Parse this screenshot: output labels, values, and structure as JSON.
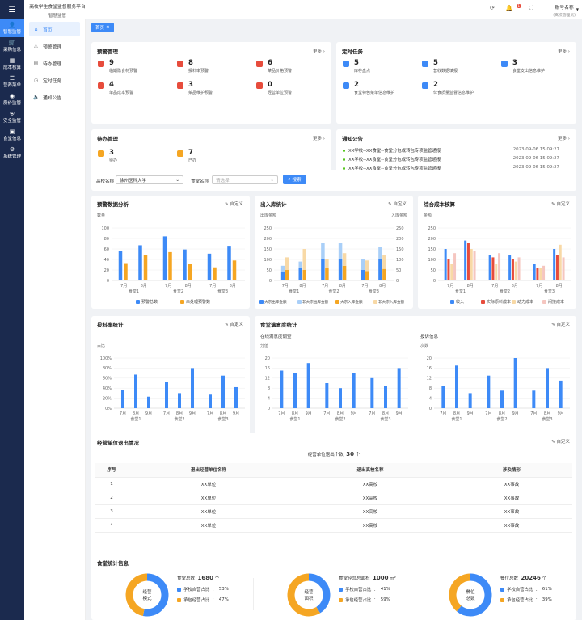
{
  "app": {
    "title": "高校学生食堂监督服务平台",
    "subtitle": "智慧监管"
  },
  "user": {
    "name": "账号名称",
    "role": "(高校管理员)"
  },
  "topbar": {
    "badge": "1"
  },
  "rail": [
    {
      "icon": "person",
      "label": "智慧监管",
      "active": true
    },
    {
      "icon": "cart",
      "label": "采购信息"
    },
    {
      "icon": "calc",
      "label": "成本核算"
    },
    {
      "icon": "menu",
      "label": "营养菜单"
    },
    {
      "icon": "coin",
      "label": "质价监管"
    },
    {
      "icon": "shield",
      "label": "安全监管"
    },
    {
      "icon": "store",
      "label": "食堂信息"
    },
    {
      "icon": "gear",
      "label": "系统管理"
    }
  ],
  "sidebar": [
    {
      "label": "首页",
      "active": true
    },
    {
      "label": "预警管理"
    },
    {
      "label": "待办管理"
    },
    {
      "label": "定时任务"
    },
    {
      "label": "通知公告"
    }
  ],
  "breadcrumb": "首页",
  "common": {
    "more": "更多",
    "custom": "自定义"
  },
  "warning": {
    "title": "预警管理",
    "items": [
      {
        "num": "9",
        "label": "临期隐食材预警",
        "color": "#e74c3c"
      },
      {
        "num": "8",
        "label": "投料率预警",
        "color": "#e74c3c"
      },
      {
        "num": "6",
        "label": "菜品价格预警",
        "color": "#e74c3c"
      },
      {
        "num": "4",
        "label": "单品成本预警",
        "color": "#e74c3c"
      },
      {
        "num": "3",
        "label": "菜品维护预警",
        "color": "#e74c3c"
      },
      {
        "num": "0",
        "label": "经营单位预警",
        "color": "#e74c3c"
      }
    ]
  },
  "tasks": {
    "title": "定时任务",
    "items": [
      {
        "num": "5",
        "label": "库存盘点",
        "color": "#3d8af7"
      },
      {
        "num": "5",
        "label": "营收数据填报",
        "color": "#3d8af7"
      },
      {
        "num": "3",
        "label": "食堂支出信息维护",
        "color": "#3d8af7"
      },
      {
        "num": "2",
        "label": "食堂特色菜单信息维护",
        "color": "#3d8af7"
      },
      {
        "num": "2",
        "label": "伙食质量监督信息维护",
        "color": "#3d8af7"
      }
    ]
  },
  "todo": {
    "title": "待办管理",
    "items": [
      {
        "num": "3",
        "label": "待办",
        "color": "#f5a623"
      },
      {
        "num": "7",
        "label": "已办",
        "color": "#f5a623"
      }
    ]
  },
  "notices": {
    "title": "通知公告",
    "items": [
      {
        "text": "XX学校--XX食堂--食堂分包或转包专项监管通报",
        "time": "2023-09-06 15:09:27"
      },
      {
        "text": "XX学校--XX食堂--食堂分包或转包专项监管通报",
        "time": "2023-09-06 15:09:27"
      },
      {
        "text": "XX学校--XX食堂--食堂分包或转包专项监管通报",
        "time": "2023-09-06 15:09:27"
      }
    ]
  },
  "filter": {
    "school_label": "高校名称",
    "school_value": "徐州医科大学",
    "canteen_label": "食堂名称",
    "canteen_placeholder": "请选择",
    "search": "搜索"
  },
  "chart_data": [
    {
      "id": "warn",
      "type": "bar",
      "title": "预警数据分析",
      "ylabel": "数量",
      "ylim": [
        0,
        100
      ],
      "yticks": [
        0,
        20,
        40,
        60,
        80,
        100
      ],
      "groups": [
        "食堂1",
        "食堂2",
        "食堂3"
      ],
      "months": [
        "7月",
        "8月"
      ],
      "series": [
        {
          "name": "预警总数",
          "color": "#3d8af7",
          "values": [
            56,
            67,
            84,
            59,
            51,
            66
          ]
        },
        {
          "name": "未处理预警数",
          "color": "#f5a623",
          "values": [
            33,
            48,
            54,
            31,
            25,
            38
          ]
        }
      ]
    },
    {
      "id": "io",
      "type": "bar",
      "title": "出入库统计",
      "ylabel": "出库金额",
      "ylabel_right": "入库金额",
      "ylim": [
        0,
        250
      ],
      "yticks": [
        0,
        50,
        100,
        150,
        200,
        250
      ],
      "groups": [
        "食堂1",
        "食堂2",
        "食堂3"
      ],
      "months": [
        "7月",
        "8月"
      ],
      "stacked": true,
      "series": [
        {
          "name": "大宗出库金额",
          "color": "#3d8af7",
          "stack": "out",
          "values": [
            40,
            60,
            100,
            100,
            50,
            100
          ]
        },
        {
          "name": "非大宗出库金额",
          "color": "#a9cff8",
          "stack": "out",
          "values": [
            30,
            30,
            80,
            80,
            50,
            60
          ]
        },
        {
          "name": "大宗入库金额",
          "color": "#f5a623",
          "stack": "in",
          "values": [
            50,
            50,
            60,
            70,
            45,
            55
          ]
        },
        {
          "name": "非大宗入库金额",
          "color": "#f8d9a6",
          "stack": "in",
          "values": [
            60,
            100,
            40,
            60,
            50,
            65
          ]
        }
      ]
    },
    {
      "id": "cost",
      "type": "bar",
      "title": "综合成本核算",
      "ylabel": "金额",
      "ylim": [
        0,
        250
      ],
      "yticks": [
        0,
        50,
        100,
        150,
        200,
        250
      ],
      "groups": [
        "食堂1",
        "食堂2",
        "食堂3"
      ],
      "months": [
        "7月",
        "8月"
      ],
      "series": [
        {
          "name": "收入",
          "color": "#3d8af7",
          "values": [
            150,
            190,
            120,
            120,
            80,
            150
          ]
        },
        {
          "name": "实际原料成本",
          "color": "#e74c3c",
          "values": [
            100,
            180,
            110,
            100,
            60,
            120
          ]
        },
        {
          "name": "动力成本",
          "color": "#f8d9a6",
          "values": [
            80,
            150,
            80,
            90,
            60,
            170
          ]
        },
        {
          "name": "间接成本",
          "color": "#f5c6c0",
          "values": [
            130,
            140,
            130,
            110,
            70,
            110
          ]
        }
      ]
    },
    {
      "id": "feed",
      "type": "bar",
      "title": "投料率统计",
      "ylabel": "占比",
      "ylim": [
        0,
        100
      ],
      "ytick_labels": [
        "0%",
        "20%",
        "40%",
        "60%",
        "80%",
        "100%"
      ],
      "groups": [
        "食堂1",
        "食堂2",
        "食堂3"
      ],
      "months": [
        "7月",
        "8月",
        "9月"
      ],
      "series": [
        {
          "name": "投料率",
          "color": "#3d8af7",
          "values": [
            36,
            67,
            23,
            52,
            30,
            80,
            27,
            65,
            42
          ]
        }
      ]
    },
    {
      "id": "satis",
      "type": "bar",
      "title": "食堂满意度统计",
      "subtitle": "在线满意度调查",
      "ylabel": "分值",
      "ylim": [
        0,
        20
      ],
      "yticks": [
        0,
        4,
        8,
        12,
        16,
        20
      ],
      "groups": [
        "食堂1",
        "食堂2",
        "食堂3"
      ],
      "months": [
        "7月",
        "8月",
        "9月"
      ],
      "series": [
        {
          "name": "满意度",
          "color": "#3d8af7",
          "values": [
            15,
            14,
            18,
            10,
            8,
            14,
            12,
            9,
            16
          ]
        }
      ]
    },
    {
      "id": "complaint",
      "type": "bar",
      "subtitle": "投诉信息",
      "ylabel": "次数",
      "ylim": [
        0,
        20
      ],
      "yticks": [
        0,
        4,
        8,
        12,
        16,
        20
      ],
      "groups": [
        "食堂1",
        "食堂2",
        "食堂3"
      ],
      "months": [
        "7月",
        "8月",
        "9月"
      ],
      "series": [
        {
          "name": "投诉",
          "color": "#3d8af7",
          "values": [
            9,
            17,
            6,
            13,
            7,
            20,
            7,
            16,
            11
          ]
        }
      ]
    },
    {
      "id": "mode",
      "type": "pie",
      "center_label": [
        "经营",
        "模式"
      ],
      "total_label": "食堂总数",
      "total_value": "1680",
      "unit": "个",
      "slices": [
        {
          "name": "学校自营占比",
          "value": 53,
          "color": "#3d8af7"
        },
        {
          "name": "承包经营占比",
          "value": 47,
          "color": "#f5a623"
        }
      ]
    },
    {
      "id": "area",
      "type": "pie",
      "center_label": [
        "经营",
        "面积"
      ],
      "total_label": "食堂经营总面积",
      "total_value": "1000",
      "unit": "m²",
      "slices": [
        {
          "name": "学校自营占比",
          "value": 41,
          "color": "#3d8af7"
        },
        {
          "name": "承包经营占比",
          "value": 59,
          "color": "#f5a623"
        }
      ]
    },
    {
      "id": "seats",
      "type": "pie",
      "center_label": [
        "餐位",
        "总数"
      ],
      "total_label": "餐位总数",
      "total_value": "20246",
      "unit": "个",
      "slices": [
        {
          "name": "学校自营占比",
          "value": 61,
          "color": "#3d8af7"
        },
        {
          "name": "承包经营占比",
          "value": 39,
          "color": "#f5a623"
        }
      ]
    }
  ],
  "exit": {
    "title": "经营单位退出情况",
    "summary_label": "经营单位退出个数",
    "summary_value": "30",
    "summary_unit": "个",
    "headers": [
      "序号",
      "退出经营单位名称",
      "退出高校名称",
      "涉及情形"
    ],
    "rows": [
      [
        "1",
        "XX单位",
        "XX高校",
        "XX事故"
      ],
      [
        "2",
        "XX单位",
        "XX高校",
        "XX事故"
      ],
      [
        "3",
        "XX单位",
        "XX高校",
        "XX事故"
      ],
      [
        "4",
        "XX单位",
        "XX高校",
        "XX事故"
      ]
    ]
  },
  "canteen_stats": {
    "title": "食堂统计信息"
  }
}
